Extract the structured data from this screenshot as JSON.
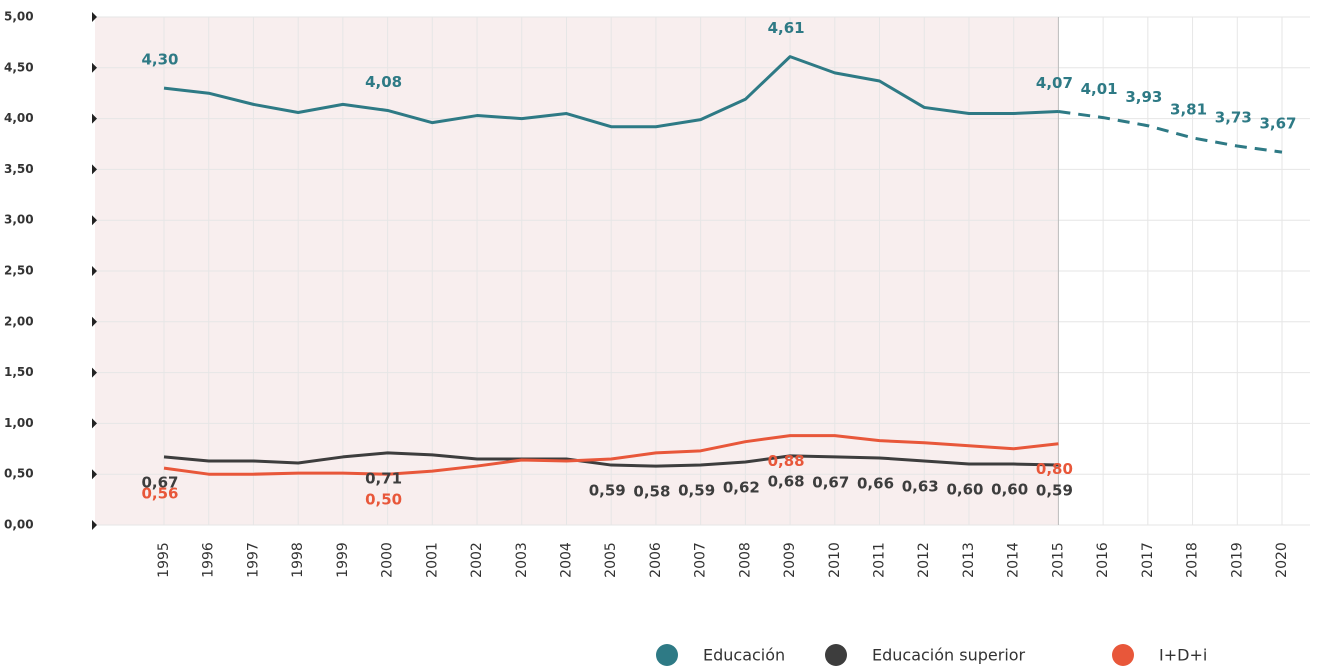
{
  "chart_data": {
    "type": "line",
    "categories": [
      "1995",
      "1996",
      "1997",
      "1998",
      "1999",
      "2000",
      "2001",
      "2002",
      "2003",
      "2004",
      "2005",
      "2006",
      "2007",
      "2008",
      "2009",
      "2010",
      "2011",
      "2012",
      "2013",
      "2014",
      "2015",
      "2016",
      "2017",
      "2018",
      "2019",
      "2020"
    ],
    "ylim": [
      0,
      5
    ],
    "yticks": [
      {
        "value": 0,
        "label": "0,00"
      },
      {
        "value": 0.5,
        "label": "0,50"
      },
      {
        "value": 1,
        "label": "1,00"
      },
      {
        "value": 1.5,
        "label": "1,50"
      },
      {
        "value": 2,
        "label": "2,00"
      },
      {
        "value": 2.5,
        "label": "2,50"
      },
      {
        "value": 3,
        "label": "3,00"
      },
      {
        "value": 3.5,
        "label": "3,50"
      },
      {
        "value": 4,
        "label": "4,00"
      },
      {
        "value": 4.5,
        "label": "4,50"
      },
      {
        "value": 5,
        "label": "5,00"
      }
    ],
    "grid": true,
    "shaded_until": "2015",
    "legend": "bottom-right",
    "series": [
      {
        "name": "Educación",
        "color": "#2e7a85",
        "dash_from": "2015",
        "values": [
          4.3,
          4.25,
          4.14,
          4.06,
          4.14,
          4.08,
          3.96,
          4.03,
          4.0,
          4.05,
          3.92,
          3.92,
          3.99,
          4.19,
          4.61,
          4.45,
          4.37,
          4.11,
          4.05,
          4.05,
          4.07,
          4.01,
          3.93,
          3.81,
          3.73,
          3.67
        ],
        "value_labels": [
          "4,30",
          null,
          null,
          null,
          null,
          "4,08",
          null,
          null,
          null,
          null,
          null,
          null,
          null,
          null,
          "4,61",
          null,
          null,
          null,
          null,
          null,
          "4,07",
          "4,01",
          "3,93",
          "3,81",
          "3,73",
          "3,67"
        ]
      },
      {
        "name": "Educación superior",
        "color": "#3d3d3d",
        "values": [
          0.67,
          0.63,
          0.63,
          0.61,
          0.67,
          0.71,
          0.69,
          0.65,
          0.65,
          0.65,
          0.59,
          0.58,
          0.59,
          0.62,
          0.68,
          0.67,
          0.66,
          0.63,
          0.6,
          0.6,
          0.59,
          null,
          null,
          null,
          null,
          null
        ],
        "value_labels": [
          "0,67",
          null,
          null,
          null,
          null,
          "0,71",
          null,
          null,
          null,
          null,
          "0,59",
          "0,58",
          "0,59",
          "0,62",
          "0,68",
          "0,67",
          "0,66",
          "0,63",
          "0,60",
          "0,60",
          "0,59",
          null,
          null,
          null,
          null,
          null
        ]
      },
      {
        "name": "I+D+i",
        "color": "#e8573a",
        "values": [
          0.56,
          0.5,
          0.5,
          0.51,
          0.51,
          0.5,
          0.53,
          0.58,
          0.64,
          0.63,
          0.65,
          0.71,
          0.73,
          0.82,
          0.88,
          0.88,
          0.83,
          0.81,
          0.78,
          0.75,
          0.8,
          null,
          null,
          null,
          null,
          null
        ],
        "value_labels": [
          "0,56",
          null,
          null,
          null,
          null,
          "0,50",
          null,
          null,
          null,
          null,
          null,
          null,
          null,
          null,
          "0,88",
          null,
          null,
          null,
          null,
          null,
          "0,80",
          null,
          null,
          null,
          null,
          null
        ]
      }
    ]
  }
}
